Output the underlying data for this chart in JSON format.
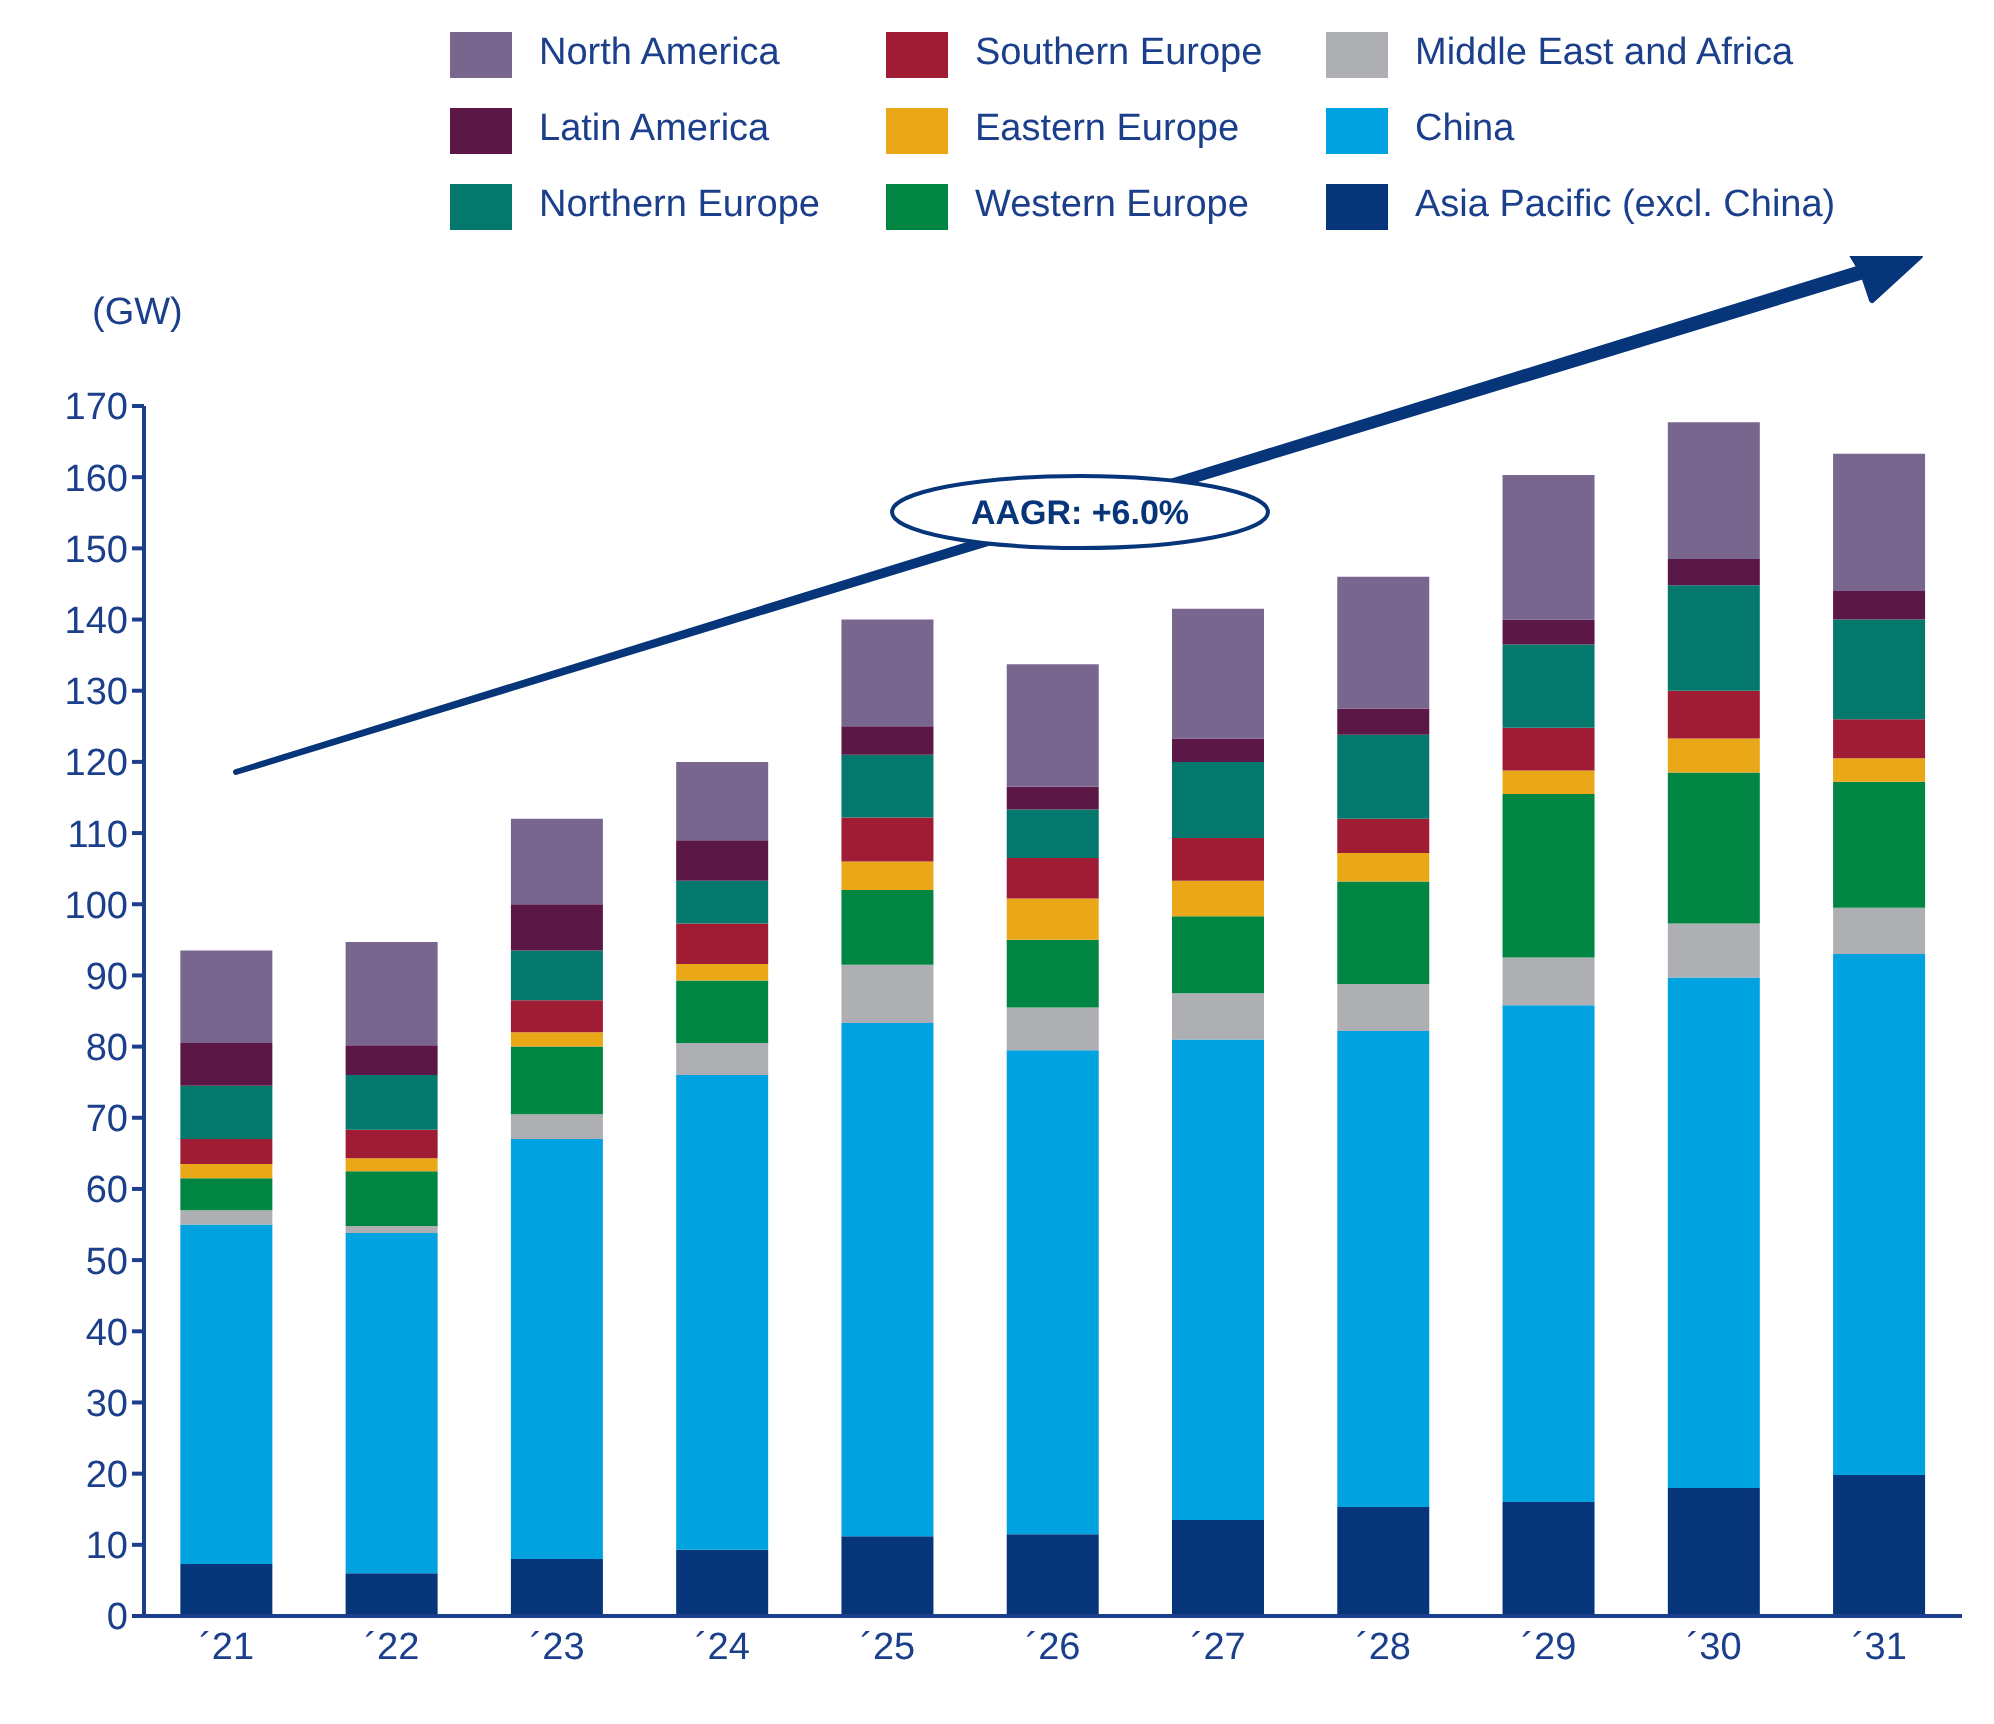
{
  "chart_data": {
    "type": "bar",
    "stacked": true,
    "ylabel": "(GW)",
    "categories": [
      "´21",
      "´22",
      "´23",
      "´24",
      "´25",
      "´26",
      "´27",
      "´28",
      "´29",
      "´30",
      "´31"
    ],
    "series": [
      {
        "name": "Asia Pacific (excl. China)",
        "color": "#06357a",
        "values": [
          7.3,
          6,
          8,
          9.3,
          11.2,
          11.5,
          13.5,
          15.3,
          16,
          18,
          19.8
        ]
      },
      {
        "name": "China",
        "color": "#00a3e0",
        "values": [
          47.7,
          47.8,
          59,
          66.7,
          72.1,
          68,
          67.5,
          66.9,
          69.8,
          71.7,
          73.2
        ]
      },
      {
        "name": "Middle East and Africa",
        "color": "#adafb2",
        "values": [
          2,
          1,
          3.5,
          4.5,
          8.2,
          6,
          6.5,
          6.6,
          6.7,
          7.6,
          6.5
        ]
      },
      {
        "name": "Western Europe",
        "color": "#008542",
        "values": [
          4.5,
          7.7,
          9.5,
          8.8,
          10.5,
          9.5,
          10.8,
          14.4,
          23,
          21.2,
          17.7
        ]
      },
      {
        "name": "Eastern Europe",
        "color": "#eaa819",
        "values": [
          2,
          1.8,
          2,
          2.3,
          4,
          5.8,
          5,
          4,
          3.3,
          4.8,
          3.3
        ]
      },
      {
        "name": "Southern Europe",
        "color": "#a01c34",
        "values": [
          3.5,
          4,
          4.5,
          5.7,
          6.2,
          5.7,
          6,
          4.8,
          6,
          6.7,
          5.5
        ]
      },
      {
        "name": "Northern Europe",
        "color": "#05786d",
        "values": [
          7.5,
          7.7,
          7,
          6,
          8.8,
          6.8,
          10.7,
          11.8,
          11.7,
          14.8,
          14
        ]
      },
      {
        "name": "Latin America",
        "color": "#5b1846",
        "values": [
          6,
          4.2,
          6.5,
          5.7,
          4,
          3.2,
          3.3,
          3.7,
          3.5,
          3.7,
          4
        ]
      },
      {
        "name": "North America",
        "color": "#78668f",
        "values": [
          13,
          14.5,
          12,
          11,
          15,
          17.2,
          18.2,
          18.5,
          20.3,
          19.2,
          19.3
        ]
      }
    ],
    "ylim": [
      0,
      170
    ],
    "yticks": [
      0,
      10,
      20,
      30,
      40,
      50,
      60,
      70,
      80,
      90,
      100,
      110,
      120,
      130,
      140,
      150,
      160,
      170
    ],
    "legend": "top",
    "annotations": [
      "AAGR: +6.0%"
    ]
  }
}
